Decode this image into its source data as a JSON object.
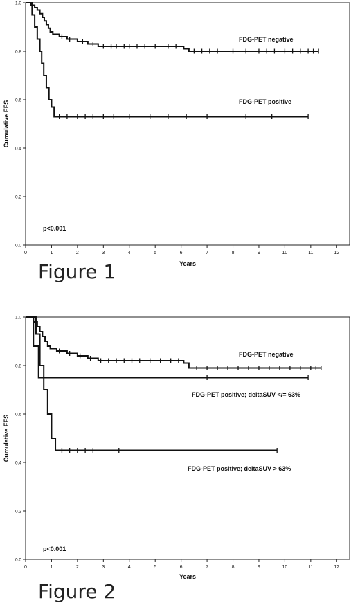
{
  "figures": [
    {
      "caption": "Figure 1",
      "chart_data": {
        "type": "line",
        "subtype": "kaplan-meier-step",
        "title": "",
        "xlabel": "Years",
        "ylabel": "Cumulative EFS",
        "xlim": [
          0,
          12.5
        ],
        "ylim": [
          0,
          1.0
        ],
        "x_ticks": [
          0,
          1,
          2,
          3,
          4,
          5,
          6,
          7,
          8,
          9,
          10,
          11,
          12
        ],
        "y_ticks": [
          0.0,
          0.2,
          0.4,
          0.6,
          0.8,
          1.0
        ],
        "y_tick_labels": [
          "0.0",
          "0.2",
          "0.4",
          "0.6",
          "0.8",
          "1.0"
        ],
        "annotation": "p<0.001",
        "grid": false,
        "series": [
          {
            "name": "FDG-PET negative",
            "steps": [
              [
                0,
                1.0
              ],
              [
                0.2,
                0.99
              ],
              [
                0.35,
                0.98
              ],
              [
                0.45,
                0.97
              ],
              [
                0.55,
                0.955
              ],
              [
                0.65,
                0.94
              ],
              [
                0.72,
                0.925
              ],
              [
                0.8,
                0.91
              ],
              [
                0.88,
                0.895
              ],
              [
                0.95,
                0.88
              ],
              [
                1.05,
                0.87
              ],
              [
                1.3,
                0.86
              ],
              [
                1.6,
                0.85
              ],
              [
                2.0,
                0.84
              ],
              [
                2.4,
                0.83
              ],
              [
                2.8,
                0.82
              ],
              [
                6.1,
                0.81
              ],
              [
                6.3,
                0.8
              ],
              [
                11.3,
                0.8
              ]
            ],
            "censored": [
              1.4,
              1.7,
              2.2,
              2.6,
              3.0,
              3.3,
              3.5,
              3.8,
              4.0,
              4.3,
              4.6,
              5.0,
              5.5,
              5.8,
              6.5,
              6.8,
              7.1,
              7.4,
              8.0,
              8.5,
              9.0,
              9.3,
              9.6,
              10.0,
              10.3,
              10.6,
              10.9,
              11.1,
              11.3
            ],
            "label_position": "upper-right"
          },
          {
            "name": "FDG-PET positive",
            "steps": [
              [
                0,
                1.0
              ],
              [
                0.25,
                0.95
              ],
              [
                0.35,
                0.9
              ],
              [
                0.45,
                0.85
              ],
              [
                0.55,
                0.8
              ],
              [
                0.62,
                0.75
              ],
              [
                0.7,
                0.7
              ],
              [
                0.8,
                0.65
              ],
              [
                0.9,
                0.6
              ],
              [
                1.0,
                0.57
              ],
              [
                1.1,
                0.53
              ],
              [
                10.9,
                0.53
              ]
            ],
            "censored": [
              1.3,
              1.6,
              2.0,
              2.3,
              2.6,
              3.0,
              3.4,
              4.0,
              4.8,
              5.5,
              6.2,
              7.0,
              8.5,
              9.5,
              10.9
            ],
            "label_position": "middle-right"
          }
        ]
      }
    },
    {
      "caption": "Figure 2",
      "chart_data": {
        "type": "line",
        "subtype": "kaplan-meier-step",
        "title": "",
        "xlabel": "Years",
        "ylabel": "Cumulative EFS",
        "xlim": [
          0,
          12.5
        ],
        "ylim": [
          0,
          1.0
        ],
        "x_ticks": [
          0,
          1,
          2,
          3,
          4,
          5,
          6,
          7,
          8,
          9,
          10,
          11,
          12
        ],
        "y_ticks": [
          0.0,
          0.2,
          0.4,
          0.6,
          0.8,
          1.0
        ],
        "y_tick_labels": [
          "0.0",
          "0.2",
          "0.4",
          "0.6",
          "0.8",
          "1.0"
        ],
        "annotation": "p<0.001",
        "grid": false,
        "series": [
          {
            "name": "FDG-PET negative",
            "steps": [
              [
                0,
                1.0
              ],
              [
                0.3,
                0.98
              ],
              [
                0.45,
                0.96
              ],
              [
                0.55,
                0.94
              ],
              [
                0.65,
                0.92
              ],
              [
                0.75,
                0.9
              ],
              [
                0.85,
                0.88
              ],
              [
                0.95,
                0.87
              ],
              [
                1.2,
                0.86
              ],
              [
                1.6,
                0.85
              ],
              [
                2.0,
                0.84
              ],
              [
                2.4,
                0.83
              ],
              [
                2.8,
                0.82
              ],
              [
                6.1,
                0.81
              ],
              [
                6.3,
                0.79
              ],
              [
                11.4,
                0.79
              ]
            ],
            "censored": [
              1.3,
              1.7,
              2.1,
              2.5,
              2.9,
              3.2,
              3.5,
              3.8,
              4.1,
              4.4,
              4.8,
              5.2,
              5.6,
              5.9,
              6.6,
              7.0,
              7.4,
              7.8,
              8.2,
              8.6,
              9.0,
              9.4,
              9.8,
              10.2,
              10.6,
              11.0,
              11.2,
              11.4
            ],
            "label_position": "upper-right"
          },
          {
            "name": "FDG-PET positive; deltaSUV </= 63%",
            "steps": [
              [
                0,
                1.0
              ],
              [
                0.3,
                0.88
              ],
              [
                0.5,
                0.75
              ],
              [
                10.9,
                0.75
              ]
            ],
            "censored": [
              7.0,
              10.9
            ],
            "label_position": "right"
          },
          {
            "name": "FDG-PET positive; deltaSUV > 63%",
            "steps": [
              [
                0,
                1.0
              ],
              [
                0.4,
                0.93
              ],
              [
                0.55,
                0.8
              ],
              [
                0.7,
                0.7
              ],
              [
                0.85,
                0.6
              ],
              [
                1.0,
                0.5
              ],
              [
                1.15,
                0.45
              ],
              [
                9.7,
                0.45
              ]
            ],
            "censored": [
              1.4,
              1.7,
              2.0,
              2.3,
              2.6,
              3.6,
              9.7
            ],
            "label_position": "lower-right"
          }
        ]
      }
    }
  ]
}
